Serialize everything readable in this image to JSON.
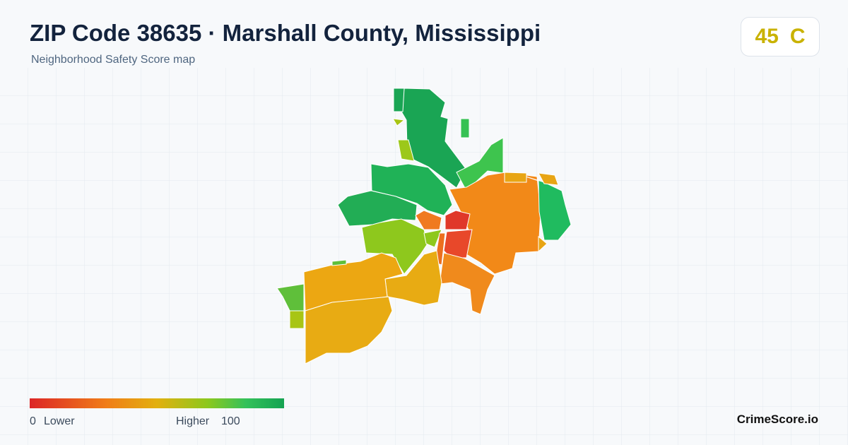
{
  "header": {
    "title": "ZIP Code 38635 · Marshall County, Mississippi",
    "subtitle": "Neighborhood Safety Score map"
  },
  "badge": {
    "score": 45,
    "grade": "C"
  },
  "legend": {
    "min": 0,
    "min_label": "Lower",
    "max_label": "Higher",
    "max": 100
  },
  "footer": {
    "brand": "CrimeScore.io"
  }
}
